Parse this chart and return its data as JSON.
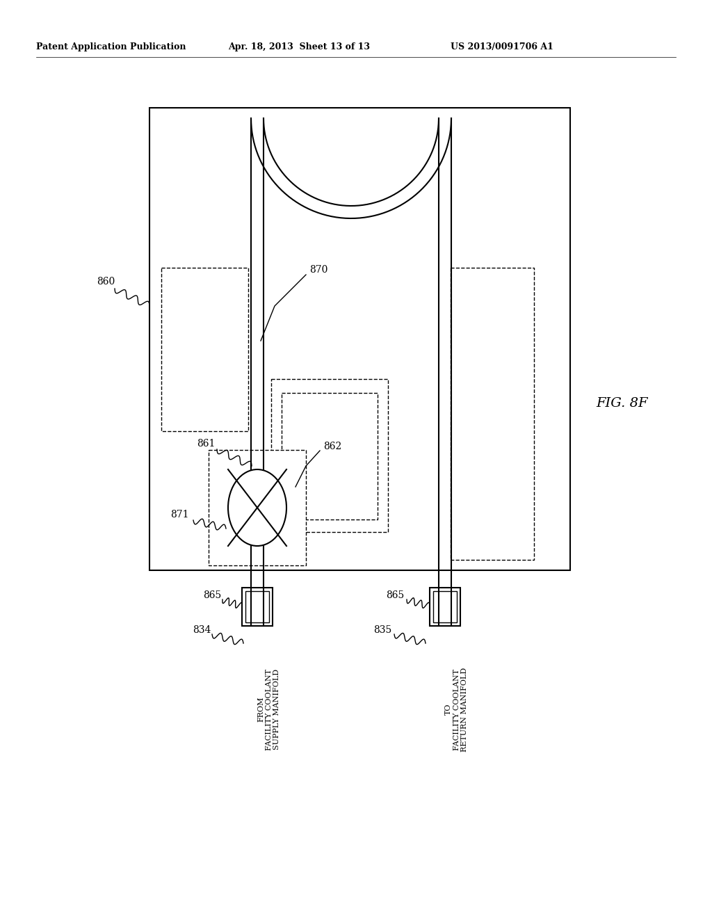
{
  "bg_color": "#ffffff",
  "header_left": "Patent Application Publication",
  "header_mid": "Apr. 18, 2013  Sheet 13 of 13",
  "header_right": "US 2013/0091706 A1",
  "fig_label": "FIG. 8F",
  "label_860": "860",
  "label_861": "861",
  "label_862": "862",
  "label_870": "870",
  "label_871": "871",
  "label_834": "834",
  "label_835": "835",
  "label_865_left": "865",
  "label_865_right": "865",
  "label_from": "FROM\nFACILITY COOLANT\nSUPPLY MANIFOLD",
  "label_to": "TO\nFACILITY COOLANT\nRETURN MANIFOLD"
}
